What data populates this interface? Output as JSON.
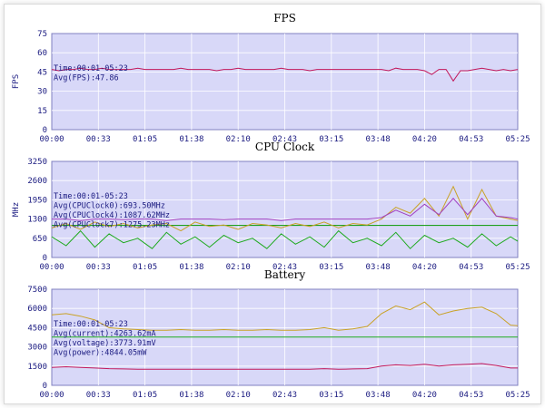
{
  "chart_data": [
    {
      "type": "line",
      "title": "FPS",
      "ylabel": "FPS",
      "ylim": [
        0,
        75
      ],
      "yticks": [
        "75",
        "60",
        "45",
        "30",
        "15",
        "0"
      ],
      "xticks": [
        "00:00",
        "00:33",
        "01:05",
        "01:38",
        "02:10",
        "02:43",
        "03:15",
        "03:48",
        "04:20",
        "04:53",
        "05:25"
      ],
      "grid": true,
      "annotations": [
        "Time:00:01-05:23",
        "Avg(FPS):47.86"
      ],
      "series": [
        {
          "color": "#c2185b",
          "x": [
            0,
            5,
            10,
            15,
            20,
            25,
            30,
            35,
            40,
            45,
            50,
            55,
            60,
            65,
            70,
            75,
            80,
            85,
            90,
            95,
            100,
            105,
            110,
            115,
            120,
            125,
            130,
            135,
            140,
            145,
            150,
            155,
            160,
            165,
            170,
            175,
            180,
            185,
            190,
            195,
            200,
            205,
            210,
            215,
            220,
            225,
            230,
            235,
            240,
            245,
            250,
            255,
            260,
            265,
            270,
            275,
            280,
            285,
            290,
            295,
            300,
            305,
            310,
            315,
            320,
            325
          ],
          "y": [
            47,
            46,
            47,
            47,
            48,
            47,
            47,
            48,
            47,
            47,
            47,
            47,
            48,
            47,
            47,
            47,
            47,
            47,
            48,
            47,
            47,
            47,
            47,
            46,
            47,
            47,
            48,
            47,
            47,
            47,
            47,
            47,
            48,
            47,
            47,
            47,
            46,
            47,
            47,
            47,
            47,
            47,
            47,
            47,
            47,
            47,
            47,
            46,
            48,
            47,
            47,
            47,
            46,
            43,
            47,
            47,
            38,
            46,
            46,
            47,
            48,
            47,
            46,
            47,
            46,
            47
          ]
        }
      ]
    },
    {
      "type": "line",
      "title": "CPU Clock",
      "ylabel": "MHz",
      "ylim": [
        0,
        3250
      ],
      "yticks": [
        "3250",
        "2600",
        "1950",
        "1300",
        "650",
        "0"
      ],
      "xticks": [
        "00:00",
        "00:33",
        "01:05",
        "01:38",
        "02:10",
        "02:43",
        "03:15",
        "03:48",
        "04:20",
        "04:53",
        "05:25"
      ],
      "grid": true,
      "threshold": 1087,
      "annotations": [
        "Time:00:01-05:23",
        "Avg(CPUClock0):693.50MHz",
        "Avg(CPUClock4):1087.62MHz",
        "Avg(CPUClock7):1275.23MHz"
      ],
      "series": [
        {
          "color": "#c9a227",
          "x": [
            0,
            10,
            20,
            30,
            40,
            50,
            60,
            70,
            80,
            90,
            100,
            110,
            120,
            130,
            140,
            150,
            160,
            170,
            180,
            190,
            200,
            210,
            220,
            230,
            240,
            250,
            260,
            270,
            280,
            290,
            300,
            310,
            320,
            325
          ],
          "y": [
            1000,
            1150,
            950,
            1200,
            1050,
            1150,
            1000,
            1100,
            1150,
            900,
            1200,
            1050,
            1100,
            950,
            1150,
            1100,
            1000,
            1150,
            1050,
            1200,
            1000,
            1150,
            1100,
            1300,
            1700,
            1500,
            2000,
            1400,
            2400,
            1300,
            2300,
            1400,
            1300,
            1250
          ]
        },
        {
          "color": "#a040c0",
          "x": [
            0,
            10,
            20,
            30,
            40,
            50,
            60,
            70,
            80,
            90,
            100,
            110,
            120,
            130,
            140,
            150,
            160,
            170,
            180,
            190,
            200,
            210,
            220,
            230,
            240,
            250,
            260,
            270,
            280,
            290,
            300,
            310,
            320,
            325
          ],
          "y": [
            1300,
            1300,
            1250,
            1300,
            1300,
            1280,
            1300,
            1300,
            1250,
            1300,
            1300,
            1300,
            1280,
            1300,
            1300,
            1300,
            1250,
            1300,
            1300,
            1300,
            1300,
            1300,
            1300,
            1350,
            1600,
            1400,
            1800,
            1450,
            2000,
            1450,
            2000,
            1400,
            1350,
            1300
          ]
        },
        {
          "color": "#1faa1f",
          "x": [
            0,
            10,
            20,
            30,
            40,
            50,
            60,
            70,
            80,
            90,
            100,
            110,
            120,
            130,
            140,
            150,
            160,
            170,
            180,
            190,
            200,
            210,
            220,
            230,
            240,
            250,
            260,
            270,
            280,
            290,
            300,
            310,
            320,
            325
          ],
          "y": [
            700,
            400,
            900,
            350,
            800,
            500,
            650,
            300,
            850,
            450,
            700,
            350,
            750,
            500,
            650,
            300,
            800,
            450,
            700,
            350,
            900,
            500,
            650,
            400,
            850,
            300,
            750,
            500,
            650,
            350,
            800,
            400,
            700,
            550
          ]
        }
      ]
    },
    {
      "type": "line",
      "title": "Battery",
      "ylabel": "",
      "ylim": [
        0,
        7500
      ],
      "yticks": [
        "7500",
        "6000",
        "4500",
        "3000",
        "1500",
        "0"
      ],
      "xticks": [
        "00:00",
        "00:33",
        "01:05",
        "01:38",
        "02:10",
        "02:43",
        "03:15",
        "03:48",
        "04:20",
        "04:53",
        "05:25"
      ],
      "grid": true,
      "annotations": [
        "Time:00:01-05:23",
        "Avg(current):4263.62mA",
        "Avg(voltage):3773.91mV",
        "Avg(power):4844.05mW"
      ],
      "series": [
        {
          "color": "#c9a227",
          "x": [
            0,
            10,
            20,
            30,
            40,
            50,
            60,
            70,
            80,
            90,
            100,
            110,
            120,
            130,
            140,
            150,
            160,
            170,
            180,
            190,
            200,
            210,
            220,
            230,
            240,
            250,
            260,
            270,
            280,
            290,
            300,
            310,
            320,
            325
          ],
          "y": [
            5500,
            5600,
            5400,
            5100,
            4500,
            4400,
            4350,
            4300,
            4300,
            4350,
            4300,
            4300,
            4350,
            4300,
            4300,
            4350,
            4300,
            4300,
            4350,
            4500,
            4300,
            4400,
            4600,
            5600,
            6200,
            5900,
            6500,
            5500,
            5800,
            6000,
            6100,
            5600,
            4700,
            4650
          ]
        },
        {
          "color": "#1faa1f",
          "x": [
            0,
            325
          ],
          "y": [
            3773,
            3773
          ]
        },
        {
          "color": "#c2185b",
          "x": [
            0,
            10,
            20,
            30,
            40,
            50,
            60,
            70,
            80,
            90,
            100,
            110,
            120,
            130,
            140,
            150,
            160,
            170,
            180,
            190,
            200,
            210,
            220,
            230,
            240,
            250,
            260,
            270,
            280,
            290,
            300,
            310,
            320,
            325
          ],
          "y": [
            1400,
            1450,
            1400,
            1350,
            1300,
            1280,
            1250,
            1250,
            1250,
            1260,
            1250,
            1250,
            1250,
            1260,
            1250,
            1250,
            1250,
            1260,
            1250,
            1300,
            1250,
            1280,
            1300,
            1500,
            1600,
            1550,
            1650,
            1500,
            1600,
            1650,
            1700,
            1550,
            1350,
            1350
          ]
        }
      ]
    }
  ]
}
